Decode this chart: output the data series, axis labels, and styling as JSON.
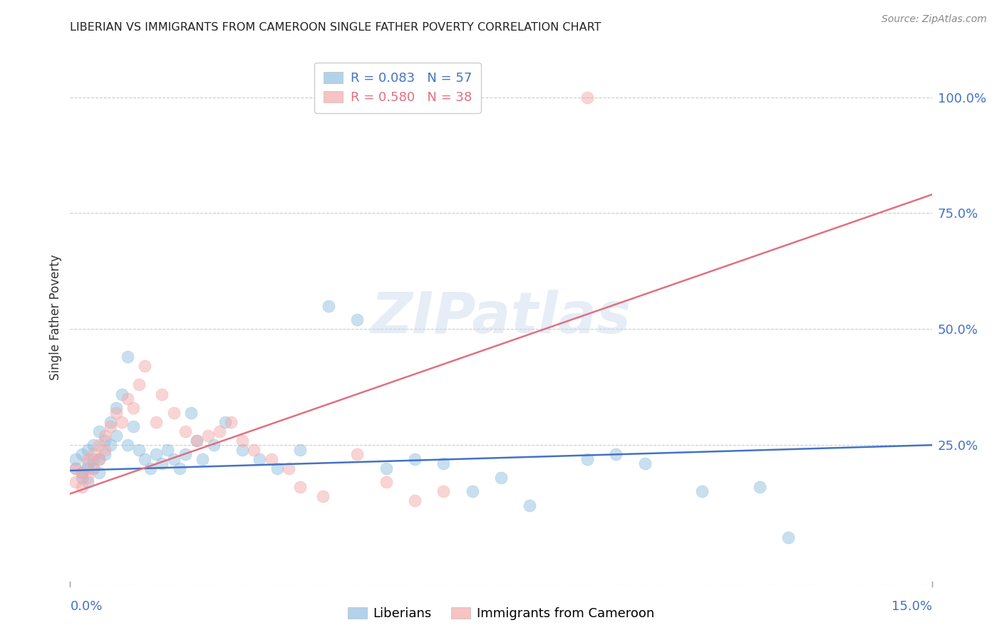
{
  "title": "LIBERIAN VS IMMIGRANTS FROM CAMEROON SINGLE FATHER POVERTY CORRELATION CHART",
  "source": "Source: ZipAtlas.com",
  "ylabel": "Single Father Poverty",
  "ytick_values": [
    1.0,
    0.75,
    0.5,
    0.25
  ],
  "xlim": [
    0.0,
    0.15
  ],
  "ylim": [
    -0.05,
    1.1
  ],
  "blue_color": "#92C0E0",
  "pink_color": "#F4AAAA",
  "blue_line_color": "#4472C4",
  "pink_line_color": "#E07080",
  "legend_blue_R": "0.083",
  "legend_blue_N": "57",
  "legend_pink_R": "0.580",
  "legend_pink_N": "38",
  "legend_label_blue": "Liberians",
  "legend_label_pink": "Immigrants from Cameroon",
  "watermark": "ZIPatlas",
  "blue_scatter_x": [
    0.001,
    0.001,
    0.002,
    0.002,
    0.002,
    0.003,
    0.003,
    0.003,
    0.003,
    0.004,
    0.004,
    0.004,
    0.005,
    0.005,
    0.005,
    0.006,
    0.006,
    0.007,
    0.007,
    0.008,
    0.008,
    0.009,
    0.01,
    0.01,
    0.011,
    0.012,
    0.013,
    0.014,
    0.015,
    0.016,
    0.017,
    0.018,
    0.019,
    0.02,
    0.021,
    0.022,
    0.023,
    0.025,
    0.027,
    0.03,
    0.033,
    0.036,
    0.04,
    0.045,
    0.05,
    0.055,
    0.06,
    0.065,
    0.07,
    0.075,
    0.08,
    0.09,
    0.095,
    0.1,
    0.11,
    0.12,
    0.125
  ],
  "blue_scatter_y": [
    0.2,
    0.22,
    0.19,
    0.23,
    0.18,
    0.24,
    0.21,
    0.2,
    0.17,
    0.22,
    0.25,
    0.2,
    0.28,
    0.22,
    0.19,
    0.26,
    0.23,
    0.3,
    0.25,
    0.33,
    0.27,
    0.36,
    0.44,
    0.25,
    0.29,
    0.24,
    0.22,
    0.2,
    0.23,
    0.21,
    0.24,
    0.22,
    0.2,
    0.23,
    0.32,
    0.26,
    0.22,
    0.25,
    0.3,
    0.24,
    0.22,
    0.2,
    0.24,
    0.55,
    0.52,
    0.2,
    0.22,
    0.21,
    0.15,
    0.18,
    0.12,
    0.22,
    0.23,
    0.21,
    0.15,
    0.16,
    0.05
  ],
  "pink_scatter_x": [
    0.001,
    0.001,
    0.002,
    0.002,
    0.003,
    0.003,
    0.004,
    0.004,
    0.005,
    0.005,
    0.006,
    0.006,
    0.007,
    0.008,
    0.009,
    0.01,
    0.011,
    0.012,
    0.013,
    0.015,
    0.016,
    0.018,
    0.02,
    0.022,
    0.024,
    0.026,
    0.028,
    0.03,
    0.032,
    0.035,
    0.038,
    0.04,
    0.044,
    0.05,
    0.055,
    0.06,
    0.065,
    0.09
  ],
  "pink_scatter_y": [
    0.17,
    0.2,
    0.16,
    0.19,
    0.22,
    0.18,
    0.23,
    0.2,
    0.25,
    0.22,
    0.27,
    0.24,
    0.29,
    0.32,
    0.3,
    0.35,
    0.33,
    0.38,
    0.42,
    0.3,
    0.36,
    0.32,
    0.28,
    0.26,
    0.27,
    0.28,
    0.3,
    0.26,
    0.24,
    0.22,
    0.2,
    0.16,
    0.14,
    0.23,
    0.17,
    0.13,
    0.15,
    1.0
  ],
  "blue_regline_x": [
    0.0,
    0.15
  ],
  "blue_regline_y": [
    0.195,
    0.25
  ],
  "pink_regline_x": [
    0.0,
    0.15
  ],
  "pink_regline_y": [
    0.145,
    0.79
  ],
  "grid_color": "#CCCCCC",
  "title_color": "#222222",
  "axis_label_color": "#4472C4",
  "source_color": "#888888"
}
